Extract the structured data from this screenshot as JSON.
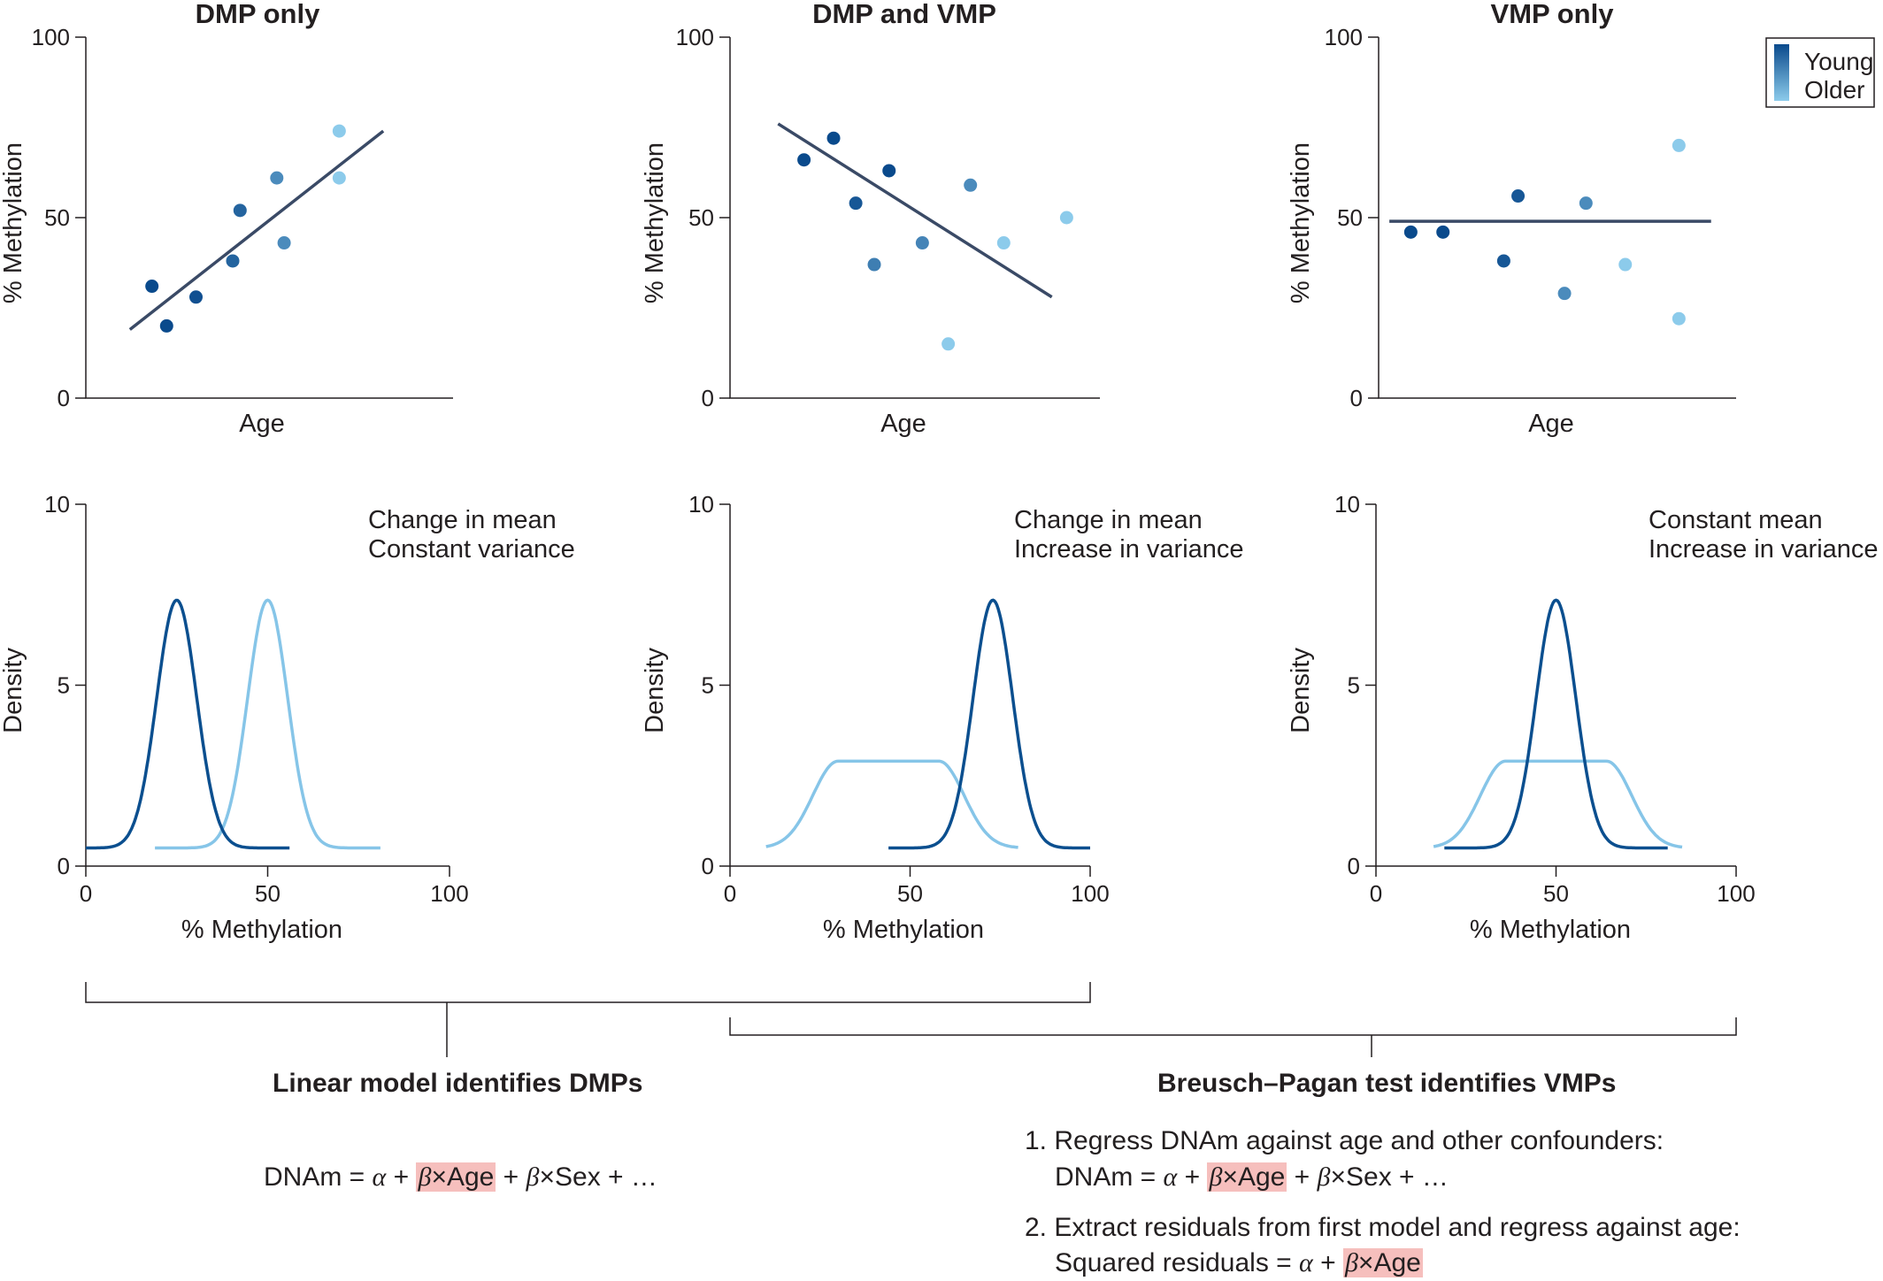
{
  "legend": {
    "items": [
      "Young",
      "Older"
    ],
    "colors": [
      "#0a4a8c",
      "#8ccbeb"
    ]
  },
  "colors": {
    "axis": "#231f20",
    "fit_line": "#3a4a66",
    "young_curve": "#0b4f8f",
    "older_curve": "#86c5e8",
    "highlight": "#f6bfbd"
  },
  "panels": [
    {
      "title": "DMP only",
      "annotation": [
        "Change in mean",
        "Constant variance"
      ]
    },
    {
      "title": "DMP and VMP",
      "annotation": [
        "Change in mean",
        "Increase in variance"
      ]
    },
    {
      "title": "VMP only",
      "annotation": [
        "Constant mean",
        "Increase in variance"
      ]
    }
  ],
  "chart_data": [
    {
      "type": "scatter",
      "title": "DMP only",
      "xlabel": "Age",
      "ylabel": "% Methylation",
      "xlim": [
        0,
        100
      ],
      "ylim": [
        0,
        100
      ],
      "yticks": [
        "0",
        "50",
        "100"
      ],
      "points": [
        {
          "x": 18,
          "y": 31,
          "shade": 0.0
        },
        {
          "x": 22,
          "y": 20,
          "shade": 0.0
        },
        {
          "x": 30,
          "y": 28,
          "shade": 0.05
        },
        {
          "x": 40,
          "y": 38,
          "shade": 0.2
        },
        {
          "x": 42,
          "y": 52,
          "shade": 0.2
        },
        {
          "x": 52,
          "y": 61,
          "shade": 0.5
        },
        {
          "x": 54,
          "y": 43,
          "shade": 0.5
        },
        {
          "x": 69,
          "y": 74,
          "shade": 1.0
        },
        {
          "x": 69,
          "y": 61,
          "shade": 1.0
        }
      ],
      "fit": {
        "x": [
          12,
          81
        ],
        "y": [
          19,
          74
        ]
      }
    },
    {
      "type": "scatter",
      "title": "DMP and VMP",
      "xlabel": "Age",
      "ylabel": "% Methylation",
      "xlim": [
        0,
        100
      ],
      "ylim": [
        0,
        100
      ],
      "yticks": [
        "0",
        "50",
        "100"
      ],
      "points": [
        {
          "x": 20,
          "y": 66,
          "shade": 0.0
        },
        {
          "x": 28,
          "y": 72,
          "shade": 0.0
        },
        {
          "x": 34,
          "y": 54,
          "shade": 0.1
        },
        {
          "x": 39,
          "y": 37,
          "shade": 0.4
        },
        {
          "x": 43,
          "y": 63,
          "shade": 0.0
        },
        {
          "x": 52,
          "y": 43,
          "shade": 0.45
        },
        {
          "x": 65,
          "y": 59,
          "shade": 0.5
        },
        {
          "x": 59,
          "y": 15,
          "shade": 1.0
        },
        {
          "x": 74,
          "y": 43,
          "shade": 1.0
        },
        {
          "x": 91,
          "y": 50,
          "shade": 1.0
        }
      ],
      "fit": {
        "x": [
          13,
          87
        ],
        "y": [
          76,
          28
        ]
      }
    },
    {
      "type": "scatter",
      "title": "VMP only",
      "xlabel": "Age",
      "ylabel": "% Methylation",
      "xlim": [
        0,
        100
      ],
      "ylim": [
        0,
        100
      ],
      "yticks": [
        "0",
        "50",
        "100"
      ],
      "points": [
        {
          "x": 9,
          "y": 46,
          "shade": 0.0
        },
        {
          "x": 18,
          "y": 46,
          "shade": 0.0
        },
        {
          "x": 35,
          "y": 38,
          "shade": 0.1
        },
        {
          "x": 39,
          "y": 56,
          "shade": 0.1
        },
        {
          "x": 52,
          "y": 29,
          "shade": 0.5
        },
        {
          "x": 58,
          "y": 54,
          "shade": 0.5
        },
        {
          "x": 69,
          "y": 37,
          "shade": 1.0
        },
        {
          "x": 84,
          "y": 70,
          "shade": 1.0
        },
        {
          "x": 84,
          "y": 22,
          "shade": 1.0
        }
      ],
      "fit": {
        "x": [
          3,
          93
        ],
        "y": [
          49,
          49
        ]
      }
    },
    {
      "type": "line",
      "title": "DMP only",
      "xlabel": "% Methylation",
      "ylabel": "Density",
      "xlim": [
        0,
        100
      ],
      "ylim": [
        0,
        10
      ],
      "xticks": [
        "0",
        "50",
        "100"
      ],
      "yticks": [
        "0",
        "5",
        "10"
      ],
      "series": [
        {
          "name": "Young",
          "x": [
            0,
            25,
            56
          ],
          "center": 25,
          "width": 5.5,
          "plateau": 0,
          "peak": 7.35,
          "base": 0.5
        },
        {
          "name": "Older",
          "x": [
            19,
            50,
            81
          ],
          "center": 50,
          "width": 5.5,
          "plateau": 0,
          "peak": 7.35,
          "base": 0.5
        }
      ]
    },
    {
      "type": "line",
      "title": "DMP and VMP",
      "xlabel": "% Methylation",
      "ylabel": "Density",
      "xlim": [
        0,
        100
      ],
      "ylim": [
        0,
        10
      ],
      "xticks": [
        "0",
        "50",
        "100"
      ],
      "yticks": [
        "0",
        "5",
        "10"
      ],
      "series": [
        {
          "name": "Young",
          "x": [
            44,
            73,
            100
          ],
          "center": 73,
          "width": 5.5,
          "plateau": 0,
          "peak": 7.35,
          "base": 0.5
        },
        {
          "name": "Older",
          "x": [
            10,
            44,
            80
          ],
          "center": 44,
          "width": 7,
          "plateau": 14,
          "peak": 2.9,
          "base": 0.5
        }
      ]
    },
    {
      "type": "line",
      "title": "VMP only",
      "xlabel": "% Methylation",
      "ylabel": "Density",
      "xlim": [
        0,
        100
      ],
      "ylim": [
        0,
        10
      ],
      "xticks": [
        "0",
        "50",
        "100"
      ],
      "yticks": [
        "0",
        "5",
        "10"
      ],
      "series": [
        {
          "name": "Young",
          "x": [
            19,
            50,
            81
          ],
          "center": 50,
          "width": 5.5,
          "plateau": 0,
          "peak": 7.35,
          "base": 0.5
        },
        {
          "name": "Older",
          "x": [
            16,
            50,
            85
          ],
          "center": 50,
          "width": 7,
          "plateau": 14,
          "peak": 2.9,
          "base": 0.5
        }
      ]
    }
  ],
  "bottom": {
    "left_heading": "Linear model identifies DMPs",
    "right_heading": "Breusch–Pagan test identifies VMPs",
    "left_formula": {
      "pre": "DNAm = ",
      "alpha": "α",
      "plus": " + ",
      "beta": "β",
      "hl_rest": "×Age",
      "post_plus": " + ",
      "beta2": "β",
      "tail": "×Sex + …"
    },
    "step1_text": "1. Regress DNAm against age and other confounders:",
    "step1_formula": {
      "pre": "DNAm = ",
      "alpha": "α",
      "plus": " + ",
      "beta": "β",
      "hl_rest": "×Age",
      "post_plus": " + ",
      "beta2": "β",
      "tail": "×Sex + …"
    },
    "step2_text": "2. Extract residuals from first model and regress against age:",
    "step2_formula": {
      "pre": "Squared residuals = ",
      "alpha": "α",
      "plus": " + ",
      "beta": "β",
      "hl_rest": "×Age"
    }
  }
}
